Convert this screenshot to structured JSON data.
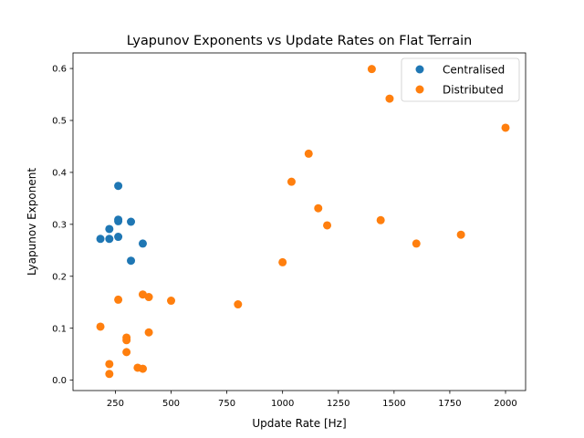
{
  "chart_data": {
    "type": "scatter",
    "title": "Lyapunov Exponents vs Update Rates on Flat Terrain",
    "xlabel": "Update Rate [Hz]",
    "ylabel": "Lyapunov Exponent",
    "xlim": [
      60,
      2090
    ],
    "ylim": [
      -0.02,
      0.63
    ],
    "xticks": [
      250,
      500,
      750,
      1000,
      1250,
      1500,
      1750,
      2000
    ],
    "xtick_labels": [
      "250",
      "500",
      "750",
      "1000",
      "1250",
      "1500",
      "1750",
      "2000"
    ],
    "yticks": [
      0.0,
      0.1,
      0.2,
      0.3,
      0.4,
      0.5,
      0.6
    ],
    "ytick_labels": [
      "0.0",
      "0.1",
      "0.2",
      "0.3",
      "0.4",
      "0.5",
      "0.6"
    ],
    "grid": false,
    "legend_position": "top-right",
    "series": [
      {
        "name": "Centralised",
        "color": "#1f77b4",
        "points": [
          [
            183,
            0.272
          ],
          [
            223,
            0.291
          ],
          [
            223,
            0.272
          ],
          [
            263,
            0.374
          ],
          [
            263,
            0.309
          ],
          [
            263,
            0.306
          ],
          [
            263,
            0.276
          ],
          [
            320,
            0.305
          ],
          [
            320,
            0.23
          ],
          [
            373,
            0.263
          ]
        ]
      },
      {
        "name": "Distributed",
        "color": "#ff7f0e",
        "points": [
          [
            183,
            0.103
          ],
          [
            223,
            0.031
          ],
          [
            223,
            0.012
          ],
          [
            263,
            0.155
          ],
          [
            300,
            0.082
          ],
          [
            300,
            0.077
          ],
          [
            300,
            0.054
          ],
          [
            350,
            0.024
          ],
          [
            373,
            0.022
          ],
          [
            373,
            0.165
          ],
          [
            400,
            0.16
          ],
          [
            400,
            0.092
          ],
          [
            500,
            0.153
          ],
          [
            800,
            0.146
          ],
          [
            1000,
            0.227
          ],
          [
            1040,
            0.382
          ],
          [
            1117,
            0.436
          ],
          [
            1160,
            0.331
          ],
          [
            1200,
            0.298
          ],
          [
            1400,
            0.599
          ],
          [
            1440,
            0.308
          ],
          [
            1480,
            0.542
          ],
          [
            1600,
            0.263
          ],
          [
            1800,
            0.28
          ],
          [
            2000,
            0.486
          ]
        ]
      }
    ]
  }
}
